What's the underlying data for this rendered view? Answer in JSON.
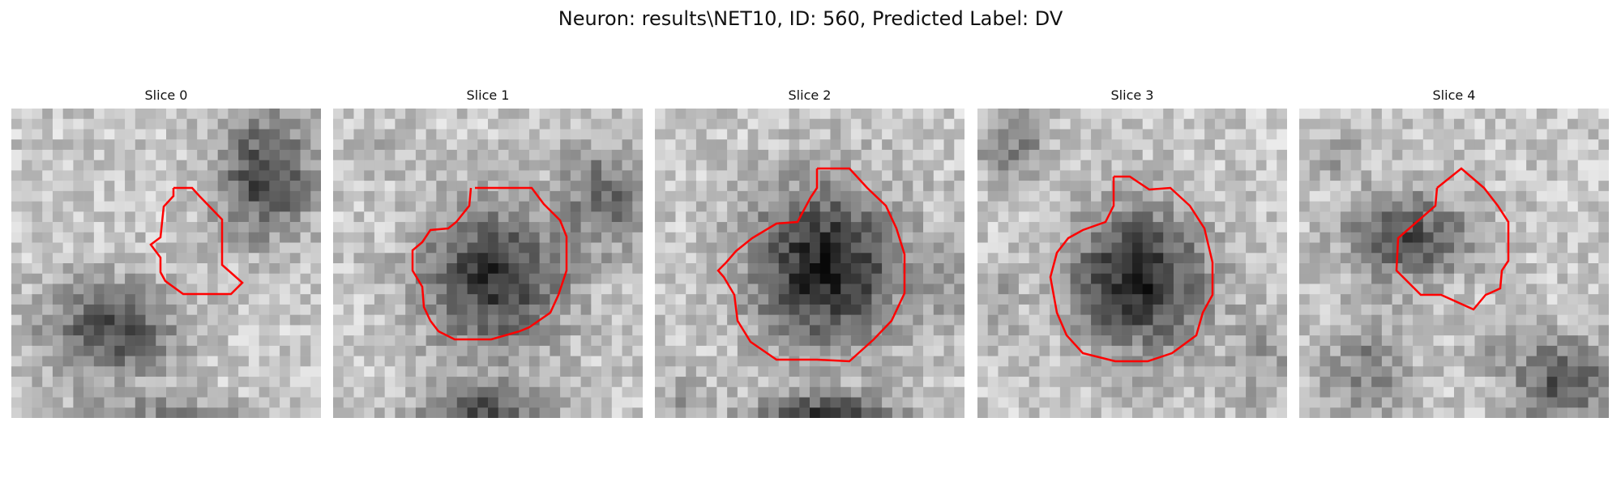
{
  "figure": {
    "title": "Neuron: results\\NET10, ID: 560, Predicted Label: DV"
  },
  "panels": [
    {
      "title": "Slice 0"
    },
    {
      "title": "Slice 1"
    },
    {
      "title": "Slice 2"
    },
    {
      "title": "Slice 3"
    },
    {
      "title": "Slice 4"
    }
  ],
  "colors": {
    "contour": "#ff0000",
    "background": "#ffffff"
  }
}
